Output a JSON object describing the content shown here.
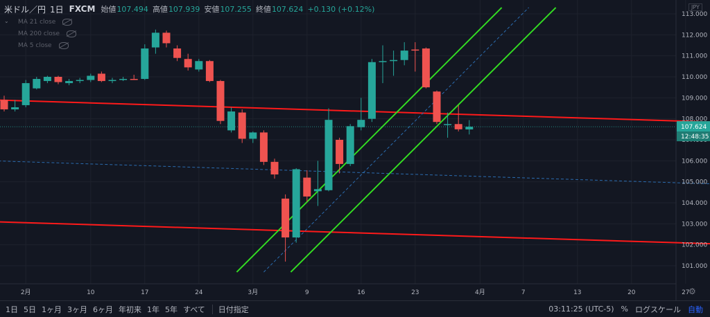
{
  "header": {
    "symbol": "米ドル／円",
    "interval": "1日",
    "source": "FXCM",
    "open_label": "始値",
    "open": "107.494",
    "high_label": "高値",
    "high": "107.939",
    "low_label": "安値",
    "low": "107.255",
    "close_label": "終値",
    "close": "107.624",
    "change": "+0.130 (+0.12%)"
  },
  "indicators": [
    "MA 21 close",
    "MA 200 close",
    "MA 5 close"
  ],
  "currency": "JPY",
  "price_label": "107.624",
  "countdown": "12:48:35",
  "toolbar": {
    "ranges": [
      "1日",
      "5日",
      "1ヶ月",
      "3ヶ月",
      "6ヶ月",
      "年初来",
      "1年",
      "5年",
      "すべて"
    ],
    "goto_date": "日付指定",
    "time": "03:11:25 (UTC-5)",
    "percent": "%",
    "log_scale": "ログスケール",
    "auto": "自動"
  },
  "colors": {
    "up": "#26a69a",
    "down": "#ef5350",
    "trend_red": "#ff1a1a",
    "channel_green": "#33dd22",
    "dashed_blue": "#2b6cb0"
  },
  "chart_data": {
    "type": "candlestick",
    "y_ticks": [
      101.0,
      102.0,
      103.0,
      104.0,
      105.0,
      106.0,
      107.0,
      108.0,
      109.0,
      110.0,
      111.0,
      112.0,
      113.0
    ],
    "ylim": [
      100.5,
      113.3
    ],
    "x_ticks": [
      {
        "label": "2月",
        "i": 2
      },
      {
        "label": "10",
        "i": 8
      },
      {
        "label": "17",
        "i": 13
      },
      {
        "label": "24",
        "i": 18
      },
      {
        "label": "3月",
        "i": 23
      },
      {
        "label": "9",
        "i": 28
      },
      {
        "label": "16",
        "i": 33
      },
      {
        "label": "23",
        "i": 38
      },
      {
        "label": "4月",
        "i": 44
      },
      {
        "label": "7",
        "i": 48
      },
      {
        "label": "13",
        "i": 53
      },
      {
        "label": "20",
        "i": 58
      },
      {
        "label": "27",
        "i": 63
      }
    ],
    "candles": [
      {
        "o": 108.9,
        "h": 109.1,
        "l": 108.35,
        "c": 108.45
      },
      {
        "o": 108.45,
        "h": 108.9,
        "l": 108.35,
        "c": 108.55
      },
      {
        "o": 108.65,
        "h": 109.85,
        "l": 108.55,
        "c": 109.7
      },
      {
        "o": 109.45,
        "h": 110.0,
        "l": 109.4,
        "c": 109.9
      },
      {
        "o": 109.8,
        "h": 110.05,
        "l": 109.7,
        "c": 110.0
      },
      {
        "o": 110.0,
        "h": 110.05,
        "l": 109.65,
        "c": 109.75
      },
      {
        "o": 109.7,
        "h": 109.9,
        "l": 109.6,
        "c": 109.8
      },
      {
        "o": 109.8,
        "h": 109.95,
        "l": 109.7,
        "c": 109.85
      },
      {
        "o": 109.85,
        "h": 110.15,
        "l": 109.75,
        "c": 110.05
      },
      {
        "o": 110.15,
        "h": 110.25,
        "l": 109.75,
        "c": 109.8
      },
      {
        "o": 109.8,
        "h": 109.95,
        "l": 109.7,
        "c": 109.85
      },
      {
        "o": 109.85,
        "h": 110.0,
        "l": 109.8,
        "c": 109.9
      },
      {
        "o": 109.9,
        "h": 110.1,
        "l": 109.85,
        "c": 109.85
      },
      {
        "o": 109.9,
        "h": 111.55,
        "l": 109.85,
        "c": 111.35
      },
      {
        "o": 111.4,
        "h": 112.25,
        "l": 111.1,
        "c": 112.1
      },
      {
        "o": 112.1,
        "h": 112.2,
        "l": 111.4,
        "c": 111.6
      },
      {
        "o": 111.35,
        "h": 111.5,
        "l": 110.75,
        "c": 110.9
      },
      {
        "o": 110.85,
        "h": 111.1,
        "l": 110.3,
        "c": 110.45
      },
      {
        "o": 110.35,
        "h": 110.85,
        "l": 110.25,
        "c": 110.75
      },
      {
        "o": 110.75,
        "h": 110.8,
        "l": 109.75,
        "c": 109.8
      },
      {
        "o": 109.8,
        "h": 109.85,
        "l": 107.75,
        "c": 107.9
      },
      {
        "o": 107.45,
        "h": 108.55,
        "l": 107.35,
        "c": 108.35
      },
      {
        "o": 108.3,
        "h": 108.45,
        "l": 106.85,
        "c": 107.05
      },
      {
        "o": 107.05,
        "h": 107.4,
        "l": 106.85,
        "c": 107.35
      },
      {
        "o": 107.35,
        "h": 107.45,
        "l": 105.8,
        "c": 105.95
      },
      {
        "o": 105.95,
        "h": 106.1,
        "l": 105.15,
        "c": 105.35
      },
      {
        "o": 104.2,
        "h": 104.4,
        "l": 101.2,
        "c": 102.35
      },
      {
        "o": 102.35,
        "h": 105.65,
        "l": 102.1,
        "c": 105.6
      },
      {
        "o": 105.2,
        "h": 105.55,
        "l": 104.05,
        "c": 104.3
      },
      {
        "o": 104.55,
        "h": 106.0,
        "l": 103.85,
        "c": 104.65
      },
      {
        "o": 104.6,
        "h": 108.5,
        "l": 104.55,
        "c": 107.95
      },
      {
        "o": 107.0,
        "h": 107.1,
        "l": 105.4,
        "c": 105.85
      },
      {
        "o": 105.85,
        "h": 107.75,
        "l": 105.75,
        "c": 107.65
      },
      {
        "o": 107.6,
        "h": 109.0,
        "l": 107.45,
        "c": 107.95
      },
      {
        "o": 108.0,
        "h": 110.85,
        "l": 107.85,
        "c": 110.7
      },
      {
        "o": 110.7,
        "h": 111.5,
        "l": 109.7,
        "c": 110.75
      },
      {
        "o": 110.75,
        "h": 111.25,
        "l": 110.05,
        "c": 110.8
      },
      {
        "o": 110.8,
        "h": 111.65,
        "l": 110.55,
        "c": 111.25
      },
      {
        "o": 111.3,
        "h": 111.65,
        "l": 110.25,
        "c": 111.25
      },
      {
        "o": 111.35,
        "h": 111.4,
        "l": 109.45,
        "c": 109.5
      },
      {
        "o": 109.3,
        "h": 109.35,
        "l": 107.75,
        "c": 107.85
      },
      {
        "o": 107.7,
        "h": 108.3,
        "l": 107.1,
        "c": 107.75
      },
      {
        "o": 107.75,
        "h": 108.65,
        "l": 107.4,
        "c": 107.5
      },
      {
        "o": 107.494,
        "h": 107.939,
        "l": 107.255,
        "c": 107.624
      }
    ],
    "drawings": [
      {
        "kind": "trend",
        "color": "red",
        "p1": {
          "i": -1,
          "v": 108.9
        },
        "p2": {
          "i": 68.5,
          "v": 107.8
        }
      },
      {
        "kind": "trend",
        "color": "red",
        "p1": {
          "i": -1,
          "v": 103.1
        },
        "p2": {
          "i": 68.5,
          "v": 102.0
        }
      },
      {
        "kind": "trend",
        "color": "green",
        "p1": {
          "i": 21.5,
          "v": 100.7
        },
        "p2": {
          "i": 46.0,
          "v": 113.3
        }
      },
      {
        "kind": "trend",
        "color": "green",
        "p1": {
          "i": 26.5,
          "v": 100.7
        },
        "p2": {
          "i": 51.0,
          "v": 113.3
        }
      },
      {
        "kind": "dashed",
        "color": "blue",
        "p1": {
          "i": 24.0,
          "v": 100.7
        },
        "p2": {
          "i": 48.5,
          "v": 113.3
        }
      },
      {
        "kind": "dashed",
        "color": "blue",
        "p1": {
          "i": -1,
          "v": 106.0
        },
        "p2": {
          "i": 68.5,
          "v": 104.85
        }
      }
    ]
  }
}
